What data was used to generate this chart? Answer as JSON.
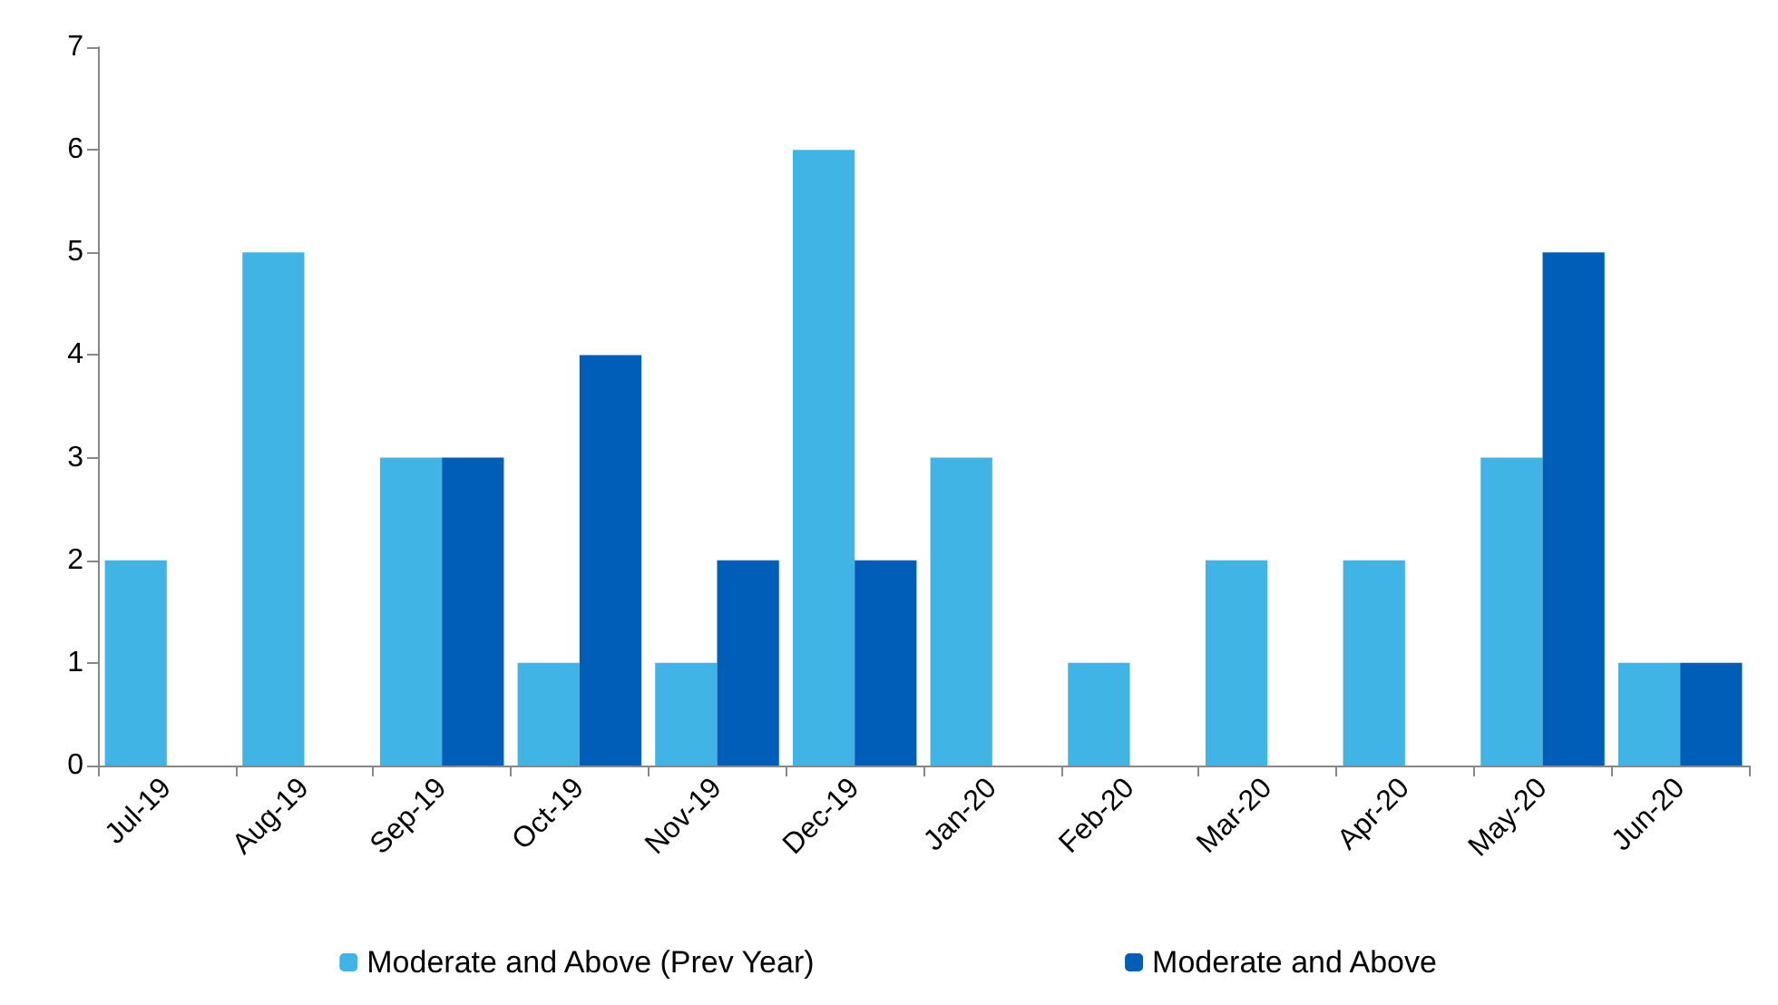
{
  "chart_data": {
    "type": "bar",
    "categories": [
      "Jul-19",
      "Aug-19",
      "Sep-19",
      "Oct-19",
      "Nov-19",
      "Dec-19",
      "Jan-20",
      "Feb-20",
      "Mar-20",
      "Apr-20",
      "May-20",
      "Jun-20"
    ],
    "series": [
      {
        "name": "Moderate and Above (Prev Year)",
        "color": "#41b4e6",
        "values": [
          2,
          5,
          3,
          1,
          1,
          6,
          3,
          1,
          2,
          2,
          3,
          1
        ]
      },
      {
        "name": "Moderate and Above",
        "color": "#005eb8",
        "values": [
          0,
          0,
          3,
          4,
          2,
          2,
          0,
          0,
          0,
          0,
          5,
          1
        ]
      }
    ],
    "ylim": [
      0,
      7
    ],
    "yticks": [
      0,
      1,
      2,
      3,
      4,
      5,
      6,
      7
    ],
    "grid": false,
    "legend": "bottom"
  }
}
